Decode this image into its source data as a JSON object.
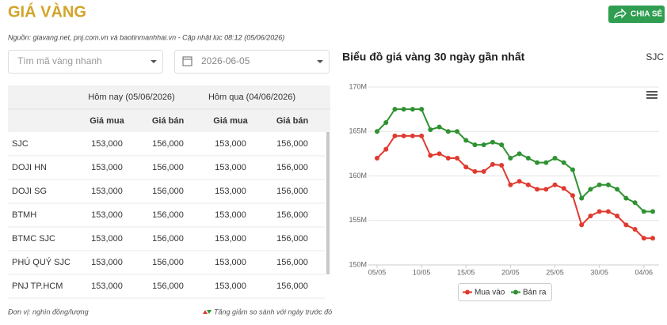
{
  "header": {
    "title": "GIÁ VÀNG",
    "share_button": "CHIA SẺ",
    "source": "Nguồn: giavang.net, pnj.com.vn và baotinmanhhai.vn - Cập nhật lúc 08:12 (05/06/2026)"
  },
  "filters": {
    "search_placeholder": "Tìm mã vàng nhanh",
    "date": "2026-06-05"
  },
  "table": {
    "group_headers": [
      "Hôm nay (05/06/2026)",
      "Hôm qua (04/06/2026)"
    ],
    "columns": [
      "Giá mua",
      "Giá bán",
      "Giá mua",
      "Giá bán"
    ],
    "rows": [
      [
        "SJC",
        "153,000",
        "156,000",
        "153,000",
        "156,000"
      ],
      [
        "DOJI HN",
        "153,000",
        "156,000",
        "153,000",
        "156,000"
      ],
      [
        "DOJI SG",
        "153,000",
        "156,000",
        "153,000",
        "156,000"
      ],
      [
        "BTMH",
        "153,000",
        "156,000",
        "153,000",
        "156,000"
      ],
      [
        "BTMC SJC",
        "153,000",
        "156,000",
        "153,000",
        "156,000"
      ],
      [
        "PHÚ QUÝ SJC",
        "153,000",
        "156,000",
        "153,000",
        "156,000"
      ],
      [
        "PNJ TP.HCM",
        "153,000",
        "156,000",
        "153,000",
        "156,000"
      ]
    ]
  },
  "footer": {
    "unit": "Đơn vị: nghìn đồng/lượng",
    "change_note": "Tăng giảm so sánh với ngày trước đó"
  },
  "chart_data": {
    "type": "line",
    "title": "Biểu đồ giá vàng 30 ngày gần nhất",
    "subtitle": "SJC",
    "categories": [
      "05/05",
      null,
      null,
      null,
      null,
      "10/05",
      null,
      null,
      null,
      null,
      "15/05",
      null,
      null,
      null,
      null,
      "20/05",
      null,
      null,
      null,
      null,
      "25/05",
      null,
      null,
      null,
      null,
      "30/05",
      null,
      null,
      null,
      null,
      "04/06",
      null
    ],
    "series": [
      {
        "name": "Mua vào",
        "color": "#e03a30",
        "values": [
          162,
          163,
          164.5,
          164.5,
          164.5,
          164.5,
          162.3,
          162.5,
          162,
          162,
          161,
          160.5,
          160.5,
          161.3,
          161.2,
          159,
          159.4,
          159,
          158.5,
          158.5,
          159,
          158.6,
          157.8,
          154.5,
          155.5,
          156,
          156,
          155.5,
          154.5,
          154,
          153,
          153
        ]
      },
      {
        "name": "Bán ra",
        "color": "#2f9232",
        "values": [
          165,
          166,
          167.5,
          167.5,
          167.5,
          167.5,
          165.2,
          165.5,
          165,
          165,
          164,
          163.5,
          163.5,
          163.8,
          163.5,
          162,
          162.5,
          162,
          161.5,
          161.5,
          162,
          161.5,
          160.7,
          157.5,
          158.5,
          159,
          159,
          158.5,
          157.5,
          157,
          156,
          156
        ]
      }
    ],
    "ylim": [
      150,
      170
    ],
    "yticks": [
      {
        "value": 150,
        "label": "150M"
      },
      {
        "value": 155,
        "label": "155M"
      },
      {
        "value": 160,
        "label": "160M"
      },
      {
        "value": 165,
        "label": "165M"
      },
      {
        "value": 170,
        "label": "170M"
      }
    ],
    "grid": true
  }
}
